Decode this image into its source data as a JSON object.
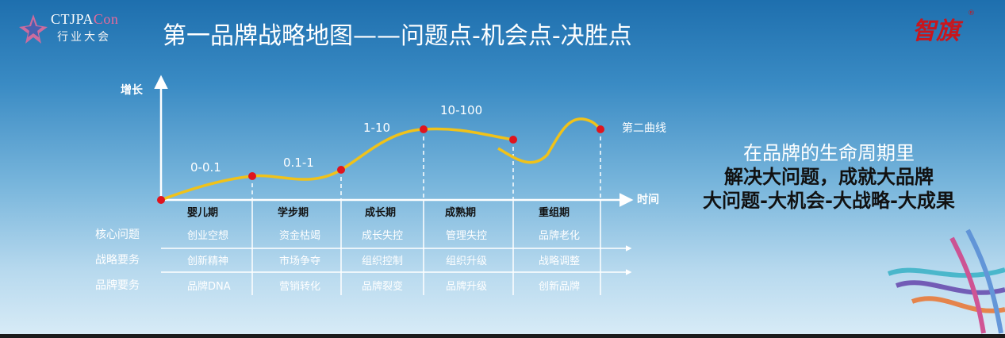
{
  "header": {
    "logo_text_main": "CTJPA",
    "logo_text_accent": "Con",
    "logo_sub": "行业大会",
    "title": "第一品牌战略地图——问题点-机会点-决胜点",
    "brand_logo": "智旗",
    "brand_reg": "®"
  },
  "chart_data": {
    "type": "line",
    "ylabel": "增长",
    "xlabel": "时间",
    "curve_label": "第二曲线",
    "segments": [
      "0-0.1",
      "0.1-1",
      "1-10",
      "10-100"
    ],
    "stages": [
      "婴儿期",
      "学步期",
      "成长期",
      "成熟期",
      "重组期"
    ],
    "rows": [
      {
        "label": "核心问题",
        "cells": [
          "创业空想",
          "资金枯竭",
          "成长失控",
          "管理失控",
          "品牌老化"
        ]
      },
      {
        "label": "战略要务",
        "cells": [
          "创新精神",
          "市场争夺",
          "组织控制",
          "组织升级",
          "战略调整"
        ]
      },
      {
        "label": "品牌要务",
        "cells": [
          "品牌DNA",
          "营销转化",
          "品牌裂变",
          "品牌升级",
          "创新品牌"
        ]
      }
    ],
    "colors": {
      "curve": "#f0c21a",
      "point": "#e0141e",
      "axis": "#ffffff"
    }
  },
  "side": {
    "line1": "在品牌的生命周期里",
    "line2": "解决大问题，成就大品牌",
    "line3": "大问题-大机会-大战略-大成果"
  }
}
